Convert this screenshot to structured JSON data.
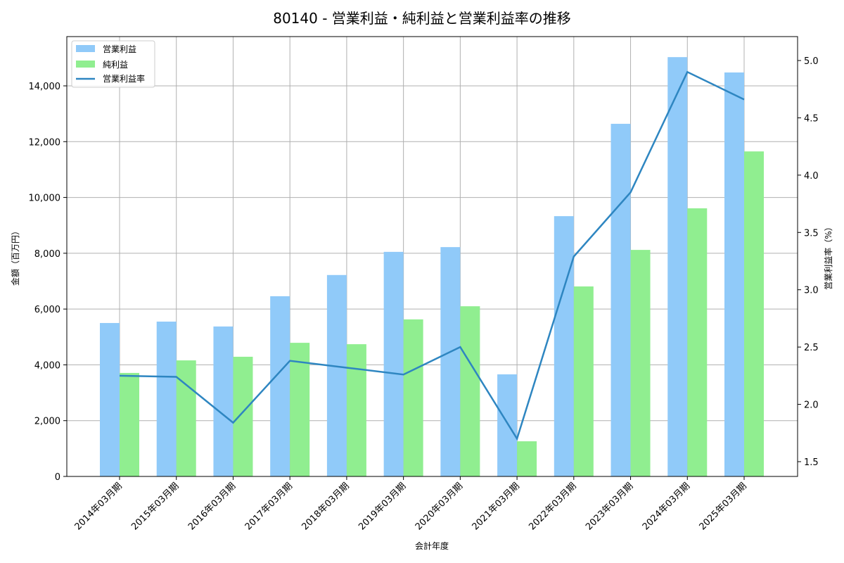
{
  "chart_data": {
    "type": "bar",
    "title": "80140 - 営業利益・純利益と営業利益率の推移",
    "xlabel": "会計年度",
    "ylabel": "金額（百万円）",
    "y2label": "営業利益率（%）",
    "ylim": [
      0,
      15700
    ],
    "y2lim": [
      1.36,
      5.2
    ],
    "yticks": [
      0,
      2000,
      4000,
      6000,
      8000,
      10000,
      12000,
      14000
    ],
    "ytick_labels": [
      "0",
      "2,000",
      "4,000",
      "6,000",
      "8,000",
      "10,000",
      "12,000",
      "14,000"
    ],
    "y2ticks": [
      1.5,
      2.0,
      2.5,
      3.0,
      3.5,
      4.0,
      4.5,
      5.0
    ],
    "y2tick_labels": [
      "1.5",
      "2.0",
      "2.5",
      "3.0",
      "3.5",
      "4.0",
      "4.5",
      "5.0"
    ],
    "grid": true,
    "legend_position": "upper left",
    "categories": [
      "2014年03月期",
      "2015年03月期",
      "2016年03月期",
      "2017年03月期",
      "2018年03月期",
      "2019年03月期",
      "2020年03月期",
      "2021年03月期",
      "2022年03月期",
      "2023年03月期",
      "2024年03月期",
      "2025年03月期"
    ],
    "series": [
      {
        "name": "営業利益",
        "type": "bar",
        "axis": "left",
        "color": "#90CAF9",
        "values": [
          5500,
          5550,
          5375,
          6460,
          7220,
          8050,
          8220,
          3660,
          9330,
          12640,
          15030,
          14480
        ]
      },
      {
        "name": "純利益",
        "type": "bar",
        "axis": "left",
        "color": "#90EE90",
        "values": [
          3710,
          4160,
          4290,
          4790,
          4740,
          5630,
          6100,
          1260,
          6810,
          8120,
          9610,
          11650
        ]
      },
      {
        "name": "営業利益率",
        "type": "line",
        "axis": "right",
        "color": "#2E86C1",
        "values": [
          2.25,
          2.24,
          1.84,
          2.38,
          2.32,
          2.26,
          2.5,
          1.7,
          3.29,
          3.85,
          4.9,
          4.66
        ]
      }
    ]
  }
}
